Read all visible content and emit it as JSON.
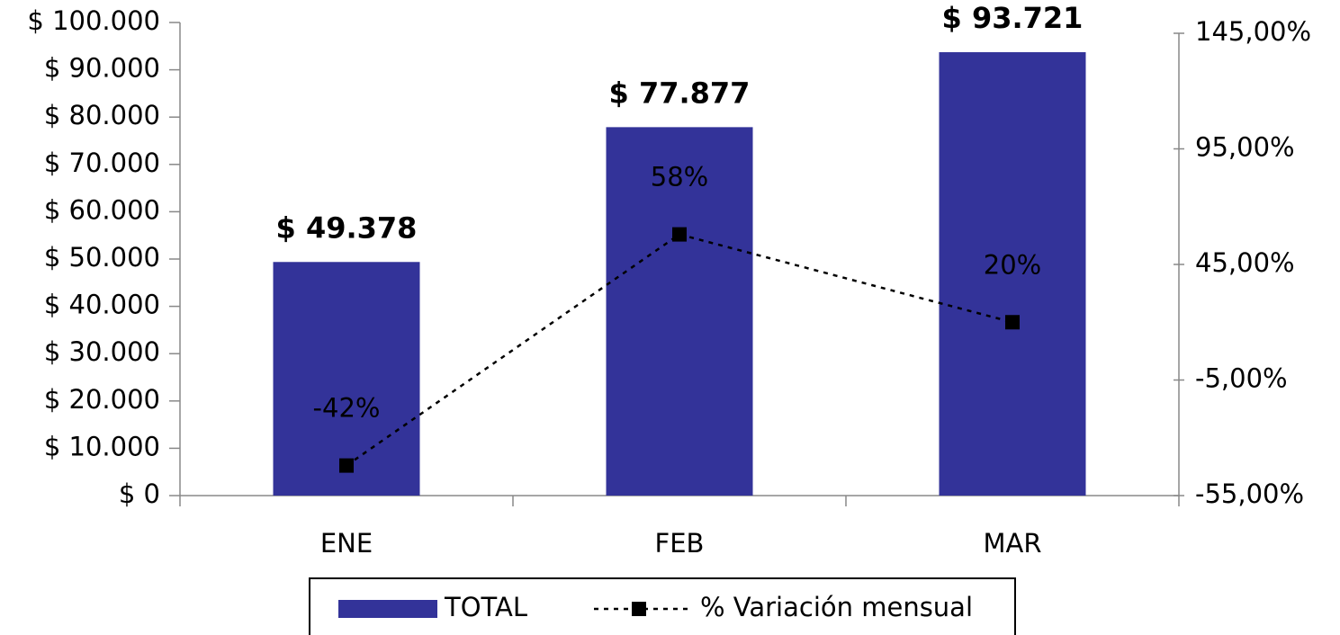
{
  "chart_data": {
    "type": "bar",
    "categories": [
      "ENE",
      "FEB",
      "MAR"
    ],
    "series": [
      {
        "name": "TOTAL",
        "type": "bar",
        "color": "#333399",
        "values": [
          49378,
          77877,
          93721
        ],
        "value_labels": [
          "$ 49.378",
          "$ 77.877",
          "$ 93.721"
        ]
      },
      {
        "name": "% Variación mensual",
        "type": "line",
        "axis": "y2",
        "color": "#000000",
        "values": [
          -42,
          58,
          20
        ],
        "value_labels": [
          "-42%",
          "58%",
          "20%"
        ]
      }
    ],
    "ylim": [
      0,
      100000
    ],
    "yticks": [
      {
        "value": 0,
        "label": "$ 0"
      },
      {
        "value": 10000,
        "label": "$ 10.000"
      },
      {
        "value": 20000,
        "label": "$ 20.000"
      },
      {
        "value": 30000,
        "label": "$ 30.000"
      },
      {
        "value": 40000,
        "label": "$ 40.000"
      },
      {
        "value": 50000,
        "label": "$ 50.000"
      },
      {
        "value": 60000,
        "label": "$ 60.000"
      },
      {
        "value": 70000,
        "label": "$ 70.000"
      },
      {
        "value": 80000,
        "label": "$ 80.000"
      },
      {
        "value": 90000,
        "label": "$ 90.000"
      },
      {
        "value": 100000,
        "label": "$ 100.000"
      }
    ],
    "y2lim": [
      -55,
      145
    ],
    "y2ticks": [
      {
        "value": -55,
        "label": "-55,00%"
      },
      {
        "value": -5,
        "label": "-5,00%"
      },
      {
        "value": 45,
        "label": "45,00%"
      },
      {
        "value": 95,
        "label": "95,00%"
      },
      {
        "value": 145,
        "label": "145,00%"
      }
    ],
    "legend": "bottom"
  }
}
